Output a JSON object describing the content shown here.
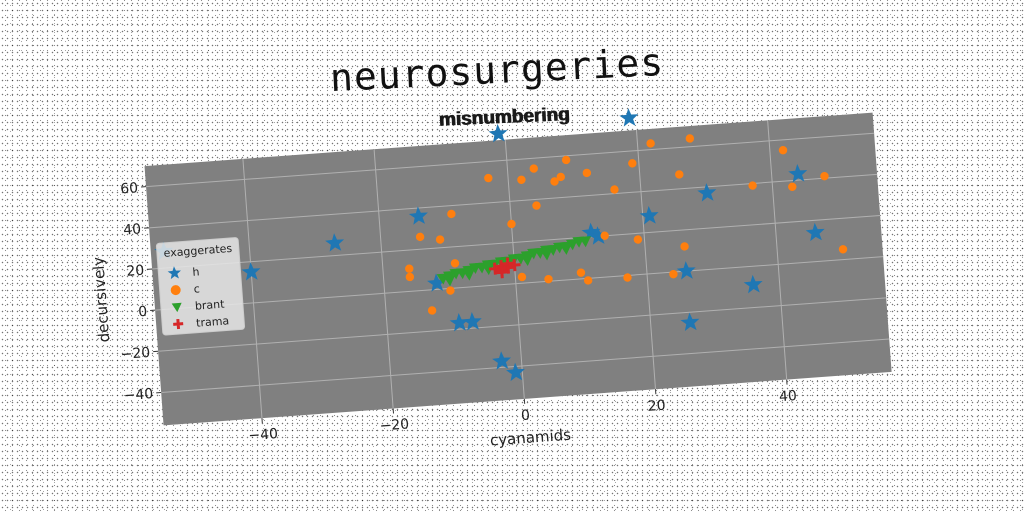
{
  "title": "neurosurgeries",
  "subtitle": "misnumbering",
  "colors": {
    "plot_bg": "#808080",
    "grid": "#b0b0b0",
    "h": "#1f77b4",
    "c": "#ff7f0e",
    "brant": "#2ca02c",
    "trama": "#d62728"
  },
  "chart_data": {
    "type": "scatter",
    "title": "misnumbering",
    "xlabel": "cyanamids",
    "ylabel": "decursively",
    "xlim": [
      -55,
      56
    ],
    "ylim": [
      -56,
      70
    ],
    "xticks": [
      -40,
      -20,
      0,
      20,
      40
    ],
    "yticks": [
      -40,
      -20,
      0,
      20,
      40,
      60
    ],
    "grid": true,
    "legend_title": "exaggerates",
    "legend_position": "center-left",
    "series": [
      {
        "name": "h",
        "marker": "star",
        "points": [
          [
            -1,
            73
          ],
          [
            19,
            76
          ],
          [
            -53,
            28
          ],
          [
            -40,
            15
          ],
          [
            -27,
            26
          ],
          [
            -14,
            36
          ],
          [
            -12,
            3
          ],
          [
            -9,
            -17
          ],
          [
            -7,
            -17
          ],
          [
            -3,
            -37
          ],
          [
            -1,
            -43
          ],
          [
            12,
            22
          ],
          [
            13,
            20
          ],
          [
            21,
            28
          ],
          [
            30,
            37
          ],
          [
            26,
            0
          ],
          [
            26,
            -25
          ],
          [
            36,
            -9
          ],
          [
            44,
            43
          ],
          [
            46,
            14
          ]
        ]
      },
      {
        "name": "c",
        "marker": "circle",
        "points": [
          [
            -16,
            11
          ],
          [
            -16,
            7
          ],
          [
            -14,
            26
          ],
          [
            -11,
            24
          ],
          [
            -9,
            36
          ],
          [
            -9,
            12
          ],
          [
            -10,
            -1
          ],
          [
            -13,
            -10
          ],
          [
            -3,
            52
          ],
          [
            0,
            29
          ],
          [
            1,
            3
          ],
          [
            2,
            50
          ],
          [
            4,
            55
          ],
          [
            4,
            37
          ],
          [
            5,
            1
          ],
          [
            7,
            48
          ],
          [
            8,
            50
          ],
          [
            9,
            58
          ],
          [
            10,
            3
          ],
          [
            11,
            -1
          ],
          [
            12,
            51
          ],
          [
            14,
            20
          ],
          [
            16,
            42
          ],
          [
            17,
            -1
          ],
          [
            19,
            54
          ],
          [
            19,
            17
          ],
          [
            22,
            63
          ],
          [
            24,
            -1
          ],
          [
            26,
            47
          ],
          [
            26,
            12
          ],
          [
            28,
            64
          ],
          [
            37,
            39
          ],
          [
            42,
            55
          ],
          [
            43,
            37
          ],
          [
            48,
            41
          ],
          [
            50,
            5
          ]
        ]
      },
      {
        "name": "brant",
        "marker": "triangle-down",
        "points": [
          [
            -11,
            5
          ],
          [
            -10,
            6
          ],
          [
            -9,
            7
          ],
          [
            -8,
            7
          ],
          [
            -7,
            8
          ],
          [
            -6,
            9
          ],
          [
            -5,
            9
          ],
          [
            -4,
            10
          ],
          [
            -3,
            10
          ],
          [
            -2,
            11
          ],
          [
            -1,
            11
          ],
          [
            0,
            12
          ],
          [
            1,
            12
          ],
          [
            2,
            13
          ],
          [
            3,
            14
          ],
          [
            4,
            14
          ],
          [
            5,
            15
          ],
          [
            6,
            15
          ],
          [
            7,
            16
          ],
          [
            8,
            16
          ],
          [
            9,
            17
          ],
          [
            10,
            18
          ],
          [
            11,
            18
          ],
          [
            -10,
            4
          ],
          [
            -7,
            6
          ],
          [
            -4,
            8
          ],
          [
            -1,
            10
          ],
          [
            2,
            11
          ],
          [
            5,
            13
          ],
          [
            8,
            15
          ]
        ]
      },
      {
        "name": "trama",
        "marker": "plus",
        "points": [
          [
            -3,
            8
          ],
          [
            -2,
            9
          ],
          [
            -2,
            7
          ],
          [
            -1,
            8
          ],
          [
            -1,
            10
          ],
          [
            0,
            9
          ],
          [
            -2,
            6
          ]
        ]
      }
    ]
  }
}
